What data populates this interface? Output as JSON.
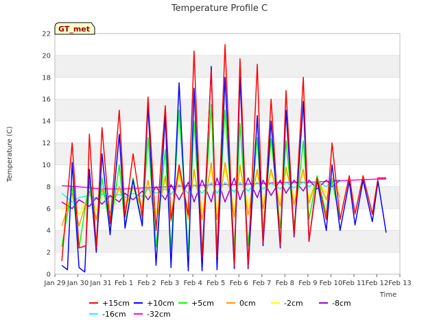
{
  "chart_data": {
    "type": "line",
    "title": "Temperature Profile C",
    "badge": "GT_met",
    "xlabel": "Time",
    "ylabel": "Temperature (C)",
    "ylim": [
      0,
      22
    ],
    "yticks": [
      0,
      2,
      4,
      6,
      8,
      10,
      12,
      14,
      16,
      18,
      20,
      22
    ],
    "xlim": [
      0,
      15
    ],
    "xticks": [
      "Jan 29",
      "Jan 30",
      "Jan 31",
      "Feb 1",
      "Feb 2",
      "Feb 3",
      "Feb 4",
      "Feb 5",
      "Feb 6",
      "Feb 7",
      "Feb 8",
      "Feb 9",
      "Feb 10",
      "Feb 11",
      "Feb 12",
      "Feb 13"
    ],
    "grid": "horizontal bands",
    "legend_position": "bottom",
    "x_unit": "days since Jan 29 (daily sampled extrema)",
    "series": [
      {
        "name": "+15cm",
        "color": "#ff0000",
        "x": [
          0.3,
          0.75,
          1.05,
          1.35,
          1.5,
          1.8,
          2.05,
          2.4,
          2.8,
          3.05,
          3.4,
          3.8,
          4.05,
          4.4,
          4.8,
          5.05,
          5.4,
          5.8,
          6.05,
          6.4,
          6.8,
          7.05,
          7.4,
          7.8,
          8.05,
          8.4,
          8.8,
          9.05,
          9.4,
          9.8,
          10.05,
          10.4,
          10.8,
          11.05,
          11.4,
          11.8,
          12.05,
          12.4,
          12.8,
          13.05,
          13.4,
          13.8,
          14.05,
          14.4
        ],
        "y": [
          1.2,
          12.0,
          2.4,
          2.6,
          12.8,
          2.4,
          13.4,
          4.6,
          15.0,
          5.2,
          11.0,
          5.2,
          16.2,
          4.0,
          15.4,
          5.0,
          10.0,
          5.4,
          20.4,
          1.5,
          18.7,
          1.6,
          21.0,
          0.8,
          19.7,
          0.7,
          19.2,
          2.8,
          16.0,
          2.6,
          16.8,
          3.5,
          18.0,
          3.0,
          8.8,
          5.0,
          12.0,
          5.0,
          9.0,
          5.5,
          9.0,
          5.5,
          8.8,
          8.8
        ]
      },
      {
        "name": "+10cm",
        "color": "#0000ff",
        "x": [
          0.3,
          0.55,
          0.75,
          1.05,
          1.3,
          1.5,
          1.8,
          2.05,
          2.4,
          2.8,
          3.05,
          3.4,
          3.8,
          4.05,
          4.4,
          4.8,
          5.05,
          5.4,
          5.8,
          6.05,
          6.4,
          6.8,
          7.05,
          7.4,
          7.8,
          8.05,
          8.4,
          8.8,
          9.05,
          9.4,
          9.8,
          10.05,
          10.4,
          10.8,
          11.05,
          11.4,
          11.8,
          12.05,
          12.4,
          12.8,
          13.05,
          13.4,
          13.8,
          14.05,
          14.4
        ],
        "y": [
          0.8,
          0.4,
          10.2,
          0.6,
          0.2,
          9.6,
          2.0,
          11.0,
          3.6,
          12.8,
          4.2,
          8.6,
          4.4,
          15.4,
          0.8,
          14.5,
          0.6,
          17.5,
          0.3,
          17.0,
          0.3,
          19.0,
          0.4,
          18.0,
          0.5,
          18.0,
          0.5,
          14.5,
          2.6,
          14.0,
          2.4,
          15.0,
          3.4,
          15.8,
          3.0,
          8.6,
          4.0,
          10.0,
          4.0,
          8.5,
          4.5,
          8.6,
          4.8,
          8.5,
          3.8
        ]
      },
      {
        "name": "+5cm",
        "color": "#00ff00",
        "x": [
          0.3,
          0.75,
          1.05,
          1.5,
          1.8,
          2.05,
          2.4,
          2.8,
          3.05,
          3.4,
          3.8,
          4.05,
          4.4,
          4.8,
          5.05,
          5.4,
          5.8,
          6.05,
          6.4,
          6.8,
          7.05,
          7.4,
          7.8,
          8.05,
          8.4,
          8.8,
          9.05,
          9.4,
          9.8,
          10.05,
          10.4,
          10.8,
          11.05,
          11.4,
          11.8,
          12.05,
          12.4
        ],
        "y": [
          2.5,
          8.0,
          2.4,
          8.5,
          3.0,
          8.8,
          4.0,
          10.0,
          4.4,
          8.8,
          4.6,
          12.5,
          2.5,
          11.4,
          2.2,
          15.0,
          2.0,
          14.0,
          2.0,
          15.5,
          2.2,
          15.0,
          2.4,
          13.8,
          2.6,
          12.5,
          4.0,
          12.4,
          4.2,
          12.2,
          4.4,
          12.2,
          5.0,
          9.0,
          5.5,
          8.5,
          5.0
        ]
      },
      {
        "name": "0cm",
        "color": "#ff9900",
        "x": [
          0.3,
          0.75,
          1.05,
          1.5,
          1.8,
          2.05,
          2.4,
          2.8,
          3.05,
          3.4,
          3.8,
          4.05,
          4.4,
          4.8,
          5.05,
          5.4,
          5.8,
          6.05,
          6.4,
          6.8,
          7.05,
          7.4,
          7.8,
          8.05,
          8.4,
          8.8,
          9.05,
          9.4,
          9.8,
          10.05,
          10.4,
          10.8,
          11.05,
          11.4,
          11.8,
          12.05,
          12.4
        ],
        "y": [
          4.4,
          7.4,
          4.4,
          7.6,
          5.0,
          7.8,
          5.6,
          8.0,
          6.0,
          8.0,
          6.0,
          8.6,
          4.6,
          9.0,
          4.8,
          9.6,
          5.0,
          9.6,
          5.0,
          10.2,
          5.0,
          10.2,
          5.2,
          10.0,
          5.4,
          9.6,
          6.0,
          9.6,
          6.2,
          9.8,
          6.4,
          9.6,
          6.5,
          8.8,
          6.8,
          8.8,
          7.0
        ]
      },
      {
        "name": "-2cm",
        "color": "#ffff00",
        "x": [
          0.3,
          0.75,
          1.05,
          1.5,
          1.8,
          2.05,
          2.4,
          2.8,
          3.05,
          3.4,
          3.8,
          4.05,
          4.4,
          4.8,
          5.05,
          5.4,
          5.8,
          6.05,
          6.4,
          6.8,
          7.05,
          7.4,
          7.8,
          8.05,
          8.4,
          8.8,
          9.05,
          9.4,
          9.8,
          10.05,
          10.4,
          10.8,
          11.05,
          11.4,
          11.8,
          12.05,
          12.4
        ],
        "y": [
          5.8,
          7.0,
          5.4,
          7.4,
          5.8,
          7.6,
          6.2,
          7.8,
          6.4,
          7.8,
          6.4,
          8.4,
          5.6,
          8.6,
          5.8,
          9.0,
          5.8,
          9.2,
          5.8,
          9.6,
          5.8,
          9.6,
          6.0,
          9.6,
          6.2,
          9.2,
          6.6,
          9.2,
          6.8,
          9.4,
          7.0,
          9.2,
          7.0,
          8.6,
          7.4,
          8.6,
          7.6
        ]
      },
      {
        "name": "-8cm",
        "color": "#9900cc",
        "x": [
          0.3,
          0.75,
          1.05,
          1.5,
          1.8,
          2.05,
          2.4,
          2.8,
          3.05,
          3.4,
          3.8,
          4.05,
          4.4,
          4.8,
          5.05,
          5.4,
          5.8,
          6.05,
          6.4,
          6.8,
          7.05,
          7.4,
          7.8,
          8.05,
          8.4,
          8.8,
          9.05,
          9.4,
          9.8,
          10.05,
          10.4,
          10.8,
          11.05,
          11.4,
          11.8,
          12.05,
          12.4
        ],
        "y": [
          6.6,
          6.0,
          6.8,
          6.2,
          7.0,
          6.4,
          7.2,
          6.6,
          7.4,
          6.8,
          7.6,
          6.8,
          8.0,
          6.8,
          8.2,
          6.8,
          8.4,
          6.6,
          8.6,
          6.6,
          8.8,
          6.6,
          8.8,
          6.8,
          8.8,
          7.0,
          8.6,
          7.2,
          8.6,
          7.4,
          8.6,
          7.6,
          8.6,
          7.8,
          8.6,
          8.0,
          8.6
        ]
      },
      {
        "name": "-16cm",
        "color": "#00ffff",
        "x": [
          0.3,
          0.75,
          1.05,
          1.5,
          1.8,
          2.05,
          2.4,
          2.8,
          3.05,
          3.4,
          3.8,
          4.05,
          4.4,
          4.8,
          5.05,
          5.4,
          5.8,
          6.05,
          6.4,
          6.8,
          7.05,
          7.4,
          7.8,
          8.05,
          8.4,
          8.8,
          9.05,
          9.4,
          9.8,
          10.05,
          10.4,
          10.8,
          11.05,
          11.4,
          11.8,
          12.05,
          12.4
        ],
        "y": [
          7.4,
          6.6,
          7.0,
          7.2,
          6.9,
          7.3,
          7.0,
          7.3,
          7.0,
          7.4,
          7.1,
          7.8,
          7.4,
          7.8,
          7.3,
          8.2,
          7.4,
          8.2,
          7.4,
          8.4,
          7.4,
          8.4,
          7.5,
          8.4,
          7.6,
          8.4,
          7.8,
          8.3,
          7.8,
          8.4,
          7.9,
          8.4,
          8.0,
          8.5,
          8.0,
          8.6,
          8.6
        ]
      },
      {
        "name": "-32cm",
        "color": "#ff00ff",
        "x": [
          0.3,
          1.0,
          2.0,
          3.0,
          4.0,
          5.0,
          6.0,
          7.0,
          8.0,
          9.0,
          10.0,
          11.0,
          12.0,
          13.0,
          14.0,
          14.4
        ],
        "y": [
          8.1,
          8.0,
          7.8,
          7.8,
          7.9,
          8.0,
          8.1,
          8.2,
          8.2,
          8.3,
          8.4,
          8.4,
          8.5,
          8.6,
          8.7,
          8.7
        ]
      }
    ]
  }
}
